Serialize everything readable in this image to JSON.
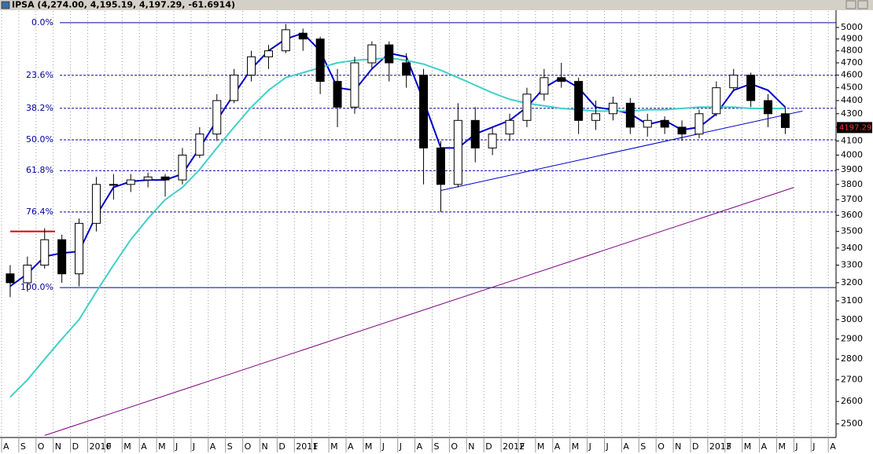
{
  "chart_data": {
    "type": "candlestick",
    "title": "IPSA (4,274.00, 4,195.19, 4,197.29, -61.6914)",
    "categories": [
      "A",
      "S",
      "O",
      "N",
      "D",
      "2010",
      "F",
      "M",
      "A",
      "M",
      "J",
      "J",
      "A",
      "S",
      "O",
      "N",
      "D",
      "2011",
      "F",
      "M",
      "A",
      "M",
      "J",
      "J",
      "A",
      "S",
      "O",
      "N",
      "D",
      "2012",
      "F",
      "M",
      "A",
      "M",
      "J",
      "J",
      "A",
      "S",
      "O",
      "N",
      "D",
      "2013",
      "F",
      "M",
      "A",
      "M",
      "J",
      "J",
      "A"
    ],
    "open": [
      3250,
      3200,
      3300,
      3450,
      3250,
      3550,
      3800,
      3800,
      3830,
      3850,
      3830,
      4000,
      4150,
      4400,
      4600,
      4750,
      4800,
      4950,
      4900,
      4550,
      4350,
      4700,
      4850,
      4700,
      4600,
      4050,
      3800,
      4250,
      4050,
      4150,
      4250,
      4450,
      4580,
      4550,
      4250,
      4300,
      4380,
      4200,
      4250,
      4200,
      4150,
      4300,
      4500,
      4600,
      4400,
      4300,
      null,
      null,
      null
    ],
    "high": [
      3300,
      3350,
      3520,
      3480,
      3580,
      3850,
      3870,
      3870,
      3880,
      3870,
      4050,
      4200,
      4450,
      4650,
      4800,
      4850,
      5030,
      4990,
      4920,
      4650,
      4750,
      4880,
      4880,
      4780,
      4650,
      4100,
      4380,
      4350,
      4200,
      4300,
      4500,
      4650,
      4700,
      4580,
      4400,
      4430,
      4420,
      4300,
      4280,
      4250,
      4330,
      4550,
      4650,
      4620,
      4450,
      4350,
      null,
      null,
      null
    ],
    "low": [
      3120,
      3150,
      3280,
      3200,
      3180,
      3500,
      3700,
      3750,
      3780,
      3720,
      3800,
      3980,
      4100,
      4380,
      4550,
      4650,
      4780,
      4800,
      4450,
      4200,
      4300,
      4650,
      4550,
      4500,
      3800,
      3620,
      3780,
      3950,
      4000,
      4100,
      4200,
      4400,
      4500,
      4150,
      4180,
      4250,
      4150,
      4130,
      4150,
      4100,
      4120,
      4280,
      4470,
      4350,
      4200,
      4150,
      null,
      null,
      null
    ],
    "close": [
      3200,
      3300,
      3450,
      3250,
      3550,
      3800,
      3800,
      3830,
      3850,
      3830,
      4000,
      4150,
      4400,
      4600,
      4750,
      4800,
      4980,
      4900,
      4550,
      4350,
      4700,
      4850,
      4700,
      4600,
      4050,
      3800,
      4250,
      4050,
      4150,
      4250,
      4450,
      4580,
      4550,
      4250,
      4300,
      4380,
      4200,
      4250,
      4200,
      4150,
      4300,
      4500,
      4600,
      4400,
      4300,
      4197.29,
      null,
      null,
      null
    ],
    "series": [
      {
        "color": "#0000cc",
        "values": [
          3180,
          3250,
          3350,
          3370,
          3380,
          3600,
          3780,
          3820,
          3830,
          3830,
          3870,
          4050,
          4250,
          4450,
          4650,
          4800,
          4900,
          4950,
          4800,
          4500,
          4480,
          4650,
          4780,
          4750,
          4400,
          4050,
          4050,
          4150,
          4200,
          4250,
          4350,
          4500,
          4580,
          4500,
          4350,
          4330,
          4300,
          4220,
          4250,
          4180,
          4200,
          4300,
          4480,
          4530,
          4480,
          4350,
          null,
          null,
          null
        ]
      },
      {
        "color": "#40d0c8",
        "values": [
          2620,
          2700,
          2800,
          2900,
          3000,
          3150,
          3300,
          3450,
          3580,
          3700,
          3780,
          3900,
          4050,
          4200,
          4350,
          4480,
          4580,
          4620,
          4660,
          4700,
          4720,
          4730,
          4740,
          4720,
          4690,
          4640,
          4580,
          4520,
          4460,
          4410,
          4380,
          4360,
          4340,
          4330,
          4320,
          4320,
          4320,
          4330,
          4330,
          4340,
          4350,
          4350,
          4350,
          4340,
          4340,
          4340,
          null,
          null,
          null
        ]
      }
    ],
    "trendlines": [
      {
        "color": "#0000cc",
        "from": {
          "x": 25,
          "value": 3760
        },
        "to": {
          "x": 46,
          "value": 4320
        }
      },
      {
        "color": "#800080",
        "from": {
          "x": 2,
          "value": 2450
        },
        "to": {
          "x": 45.5,
          "value": 3780
        }
      },
      {
        "color": "#e00000",
        "from": {
          "x": 0,
          "value": 3500
        },
        "to": {
          "x": 2.6,
          "value": 3500
        }
      }
    ],
    "fib_levels": [
      {
        "label": "0.0%",
        "value": 5042
      },
      {
        "label": "23.6%",
        "value": 4599
      },
      {
        "label": "38.2%",
        "value": 4341
      },
      {
        "label": "50.0%",
        "value": 4108
      },
      {
        "label": "61.8%",
        "value": 3893
      },
      {
        "label": "76.4%",
        "value": 3621
      },
      {
        "label": "100.0%",
        "value": 3173
      }
    ],
    "last_price": 4197.29,
    "log_scale": true,
    "grid": true,
    "ylim": [
      2448,
      5146
    ],
    "yticks": [
      2500,
      2600,
      2700,
      2800,
      2900,
      3000,
      3100,
      3200,
      3300,
      3400,
      3500,
      3600,
      3700,
      3800,
      3900,
      4000,
      4100,
      4200,
      4300,
      4400,
      4500,
      4600,
      4700,
      4800,
      4900,
      5000
    ]
  }
}
